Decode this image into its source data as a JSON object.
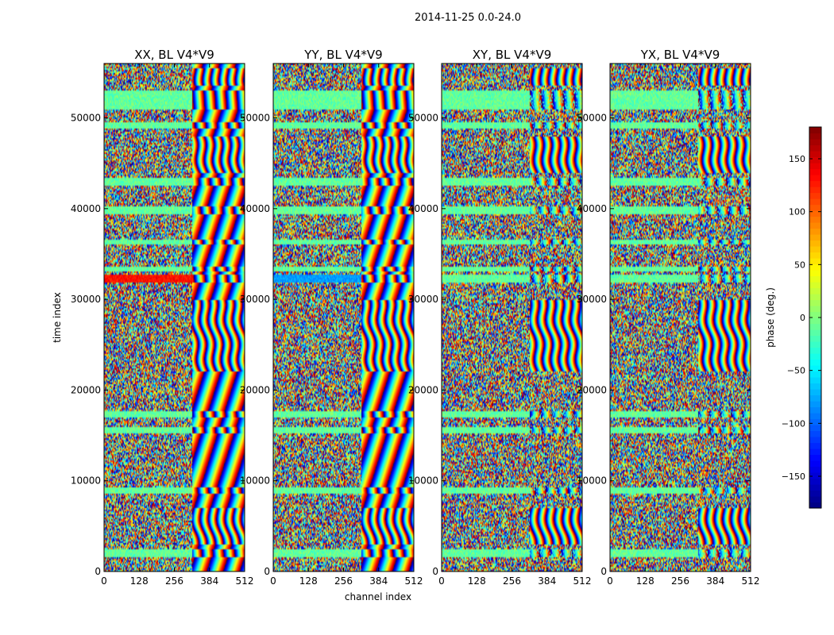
{
  "chart_data": {
    "type": "heatmap",
    "suptitle": "2014-11-25 0.0-24.0",
    "xlabel": "channel index",
    "ylabel": "time index",
    "xlim": [
      0,
      512
    ],
    "ylim": [
      0,
      56000
    ],
    "xticks": [
      0,
      128,
      256,
      384,
      512
    ],
    "yticks": [
      0,
      10000,
      20000,
      30000,
      40000,
      50000
    ],
    "ytick_labels": [
      "0",
      "10000",
      "20000",
      "30000",
      "40000",
      "50000"
    ],
    "panels": [
      {
        "title": "XX, BL V4*V9",
        "strong_band_phase": 130
      },
      {
        "title": "YY, BL V4*V9",
        "strong_band_phase": -80
      },
      {
        "title": "XY, BL V4*V9",
        "strong_band_phase": null
      },
      {
        "title": "YX, BL V4*V9",
        "strong_band_phase": null
      }
    ],
    "colorbar": {
      "label": "phase (deg.)",
      "range": [
        -180,
        180
      ],
      "ticks": [
        -150,
        -100,
        -50,
        0,
        50,
        100,
        150
      ],
      "tick_labels": [
        "−150",
        "−100",
        "−50",
        "0",
        "50",
        "100",
        "150"
      ],
      "colormap": "jet"
    },
    "calibration_bands_time": [
      [
        1500,
        2400
      ],
      [
        8500,
        9200
      ],
      [
        15200,
        16000
      ],
      [
        17000,
        17700
      ],
      [
        31800,
        32800
      ],
      [
        33000,
        33600
      ],
      [
        36000,
        36500
      ],
      [
        39300,
        40200
      ],
      [
        42600,
        43400
      ],
      [
        48800,
        49600
      ],
      [
        51000,
        53000
      ]
    ],
    "fringe_start_channel": 320,
    "fringe_bands_time": [
      [
        3000,
        7000
      ],
      [
        22000,
        30000
      ],
      [
        44000,
        48000
      ],
      [
        53500,
        55500
      ]
    ]
  }
}
